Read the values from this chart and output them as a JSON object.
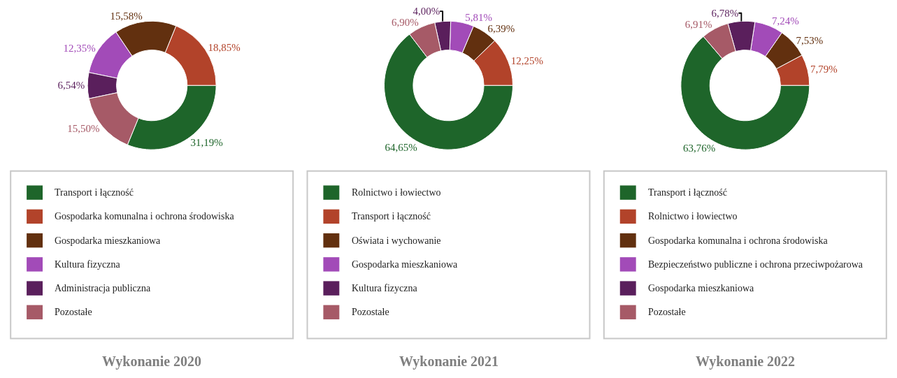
{
  "chart_data": [
    {
      "type": "donut",
      "title": "Wykonanie 2020",
      "legend": "bottom",
      "categories": [
        "Transport i łączność",
        "Gospodarka komunalna i ochrona środowiska",
        "Gospodarka mieszkaniowa",
        "Kultura fizyczna",
        "Administracja publiczna",
        "Pozostałe"
      ],
      "values": [
        31.19,
        18.85,
        15.58,
        12.35,
        6.54,
        15.5
      ],
      "value_labels": [
        "31,19%",
        "18,85%",
        "15,58%",
        "12,35%",
        "6,54%",
        "15,50%"
      ],
      "colors": [
        "#1e652a",
        "#b2432a",
        "#62300f",
        "#a24bb8",
        "#5a1f5c",
        "#a65a67"
      ]
    },
    {
      "type": "donut",
      "title": "Wykonanie 2021",
      "legend": "bottom",
      "categories": [
        "Rolnictwo i łowiectwo",
        "Transport i łączność",
        "Oświata i wychowanie",
        "Gospodarka mieszkaniowa",
        "Kultura fizyczna",
        "Pozostałe"
      ],
      "values": [
        64.65,
        12.25,
        6.39,
        5.81,
        4.0,
        6.9
      ],
      "value_labels": [
        "64,65%",
        "12,25%",
        "6,39%",
        "5,81%",
        "4,00%",
        "6,90%"
      ],
      "colors": [
        "#1e652a",
        "#b2432a",
        "#62300f",
        "#a24bb8",
        "#5a1f5c",
        "#a65a67"
      ]
    },
    {
      "type": "donut",
      "title": "Wykonanie 2022",
      "legend": "bottom",
      "categories": [
        "Transport i łączność",
        "Rolnictwo i łowiectwo",
        "Gospodarka komunalna i ochrona środowiska",
        "Bezpieczeństwo publiczne i ochrona przeciwpożarowa",
        "Gospodarka mieszkaniowa",
        "Pozostałe"
      ],
      "values": [
        63.76,
        7.79,
        7.53,
        7.24,
        6.78,
        6.91
      ],
      "value_labels": [
        "63,76%",
        "7,79%",
        "7,53%",
        "7,24%",
        "6,78%",
        "6,91%"
      ],
      "colors": [
        "#1e652a",
        "#b2432a",
        "#62300f",
        "#a24bb8",
        "#5a1f5c",
        "#a65a67"
      ]
    }
  ]
}
